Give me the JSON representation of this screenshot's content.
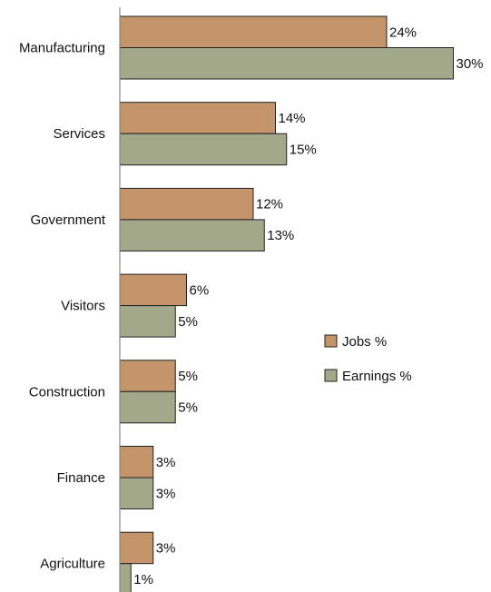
{
  "chart_data": {
    "type": "bar",
    "orientation": "horizontal",
    "categories": [
      "Manufacturing",
      "Services",
      "Government",
      "Visitors",
      "Construction",
      "Finance",
      "Agriculture"
    ],
    "series": [
      {
        "name": "Jobs %",
        "values": [
          24,
          14,
          12,
          6,
          5,
          3,
          3
        ],
        "labels": [
          "24%",
          "14%",
          "12%",
          "6%",
          "5%",
          "3%",
          "3%"
        ],
        "color": "#C4956A"
      },
      {
        "name": "Earnings %",
        "values": [
          30,
          15,
          13,
          5,
          5,
          3,
          1
        ],
        "labels": [
          "30%",
          "15%",
          "13%",
          "5%",
          "5%",
          "3%",
          "1%"
        ],
        "color": "#A4A88A"
      }
    ],
    "xlim": [
      0,
      30
    ],
    "grid": false,
    "legend_position": "right"
  },
  "colors": {
    "jobs": "#C4956A",
    "earnings": "#A4A88A",
    "axis": "#888888",
    "bar_border": "#222222"
  }
}
